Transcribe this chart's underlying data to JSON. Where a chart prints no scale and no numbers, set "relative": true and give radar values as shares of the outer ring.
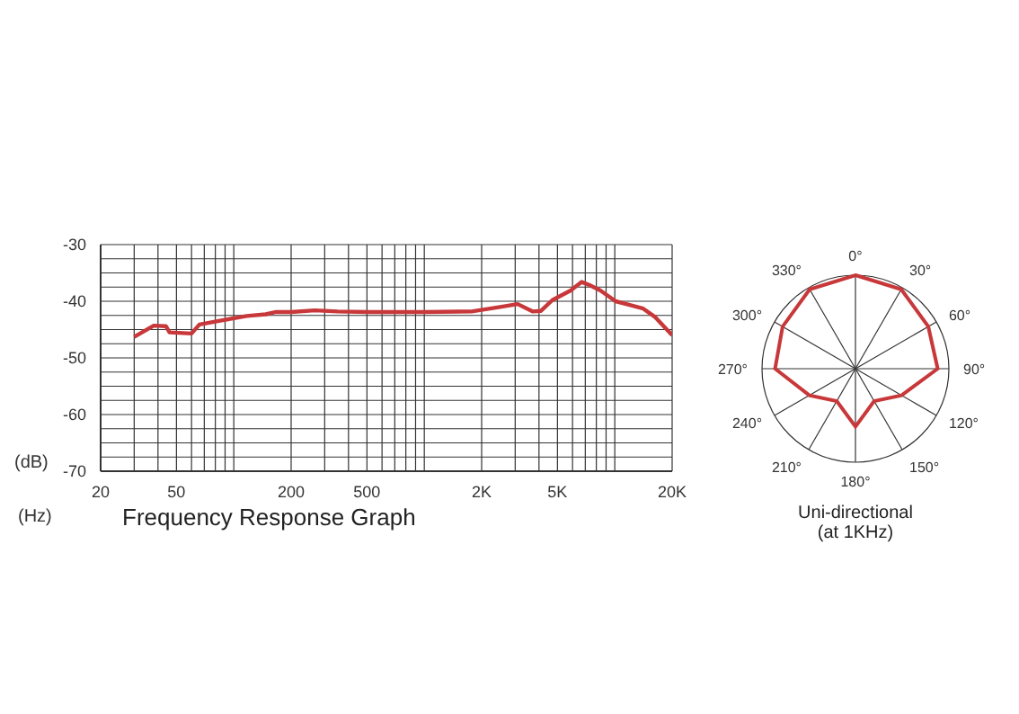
{
  "chart_data": [
    {
      "type": "line",
      "title": "Frequency Response Graph",
      "xlabel": "(Hz)",
      "ylabel": "(dB)",
      "log": "x",
      "grid": true,
      "legend": false,
      "marker": "none",
      "line_style": "solid",
      "xlim": [
        20,
        20000
      ],
      "xticks": [
        20,
        50,
        200,
        500,
        {
          "value": 2000,
          "label": "2K"
        },
        {
          "value": 5000,
          "label": "5K"
        },
        {
          "value": 20000,
          "label": "20K"
        }
      ],
      "ylim": [
        -70,
        -30
      ],
      "yticks": [
        -70,
        -60,
        -50,
        -40,
        -30
      ],
      "x": [
        30,
        38,
        44,
        46,
        60,
        66,
        86,
        117,
        147,
        167,
        200,
        266,
        351,
        500,
        1000,
        1770,
        2500,
        3090,
        3700,
        4100,
        4700,
        5870,
        6700,
        7320,
        8400,
        10100,
        12100,
        14100,
        16300,
        20000
      ],
      "series": [
        {
          "color": "#c8383a",
          "values": [
            -46.3,
            -44.3,
            -44.4,
            -45.5,
            -45.7,
            -44.1,
            -43.4,
            -42.6,
            -42.3,
            -41.9,
            -41.9,
            -41.6,
            -41.8,
            -41.9,
            -41.9,
            -41.8,
            -41.0,
            -40.5,
            -41.8,
            -41.7,
            -39.8,
            -38.1,
            -36.6,
            -37.1,
            -38.1,
            -40.0,
            -40.7,
            -41.3,
            -42.8,
            -46.0
          ]
        }
      ]
    },
    {
      "type": "radar",
      "title": "Uni-directional",
      "subtitle": "(at 1KHz)",
      "relative": true,
      "grid": true,
      "legend": false,
      "categories": [
        "0°",
        "30°",
        "60°",
        "90°",
        "120°",
        "150°",
        "180°",
        "210°",
        "240°",
        "270°",
        "300°",
        "330°"
      ],
      "series": [
        {
          "color": "#c8383a",
          "values": [
            1.0,
            0.98,
            0.9,
            0.88,
            0.57,
            0.4,
            0.62,
            0.4,
            0.57,
            0.86,
            0.9,
            0.98
          ]
        }
      ]
    }
  ]
}
